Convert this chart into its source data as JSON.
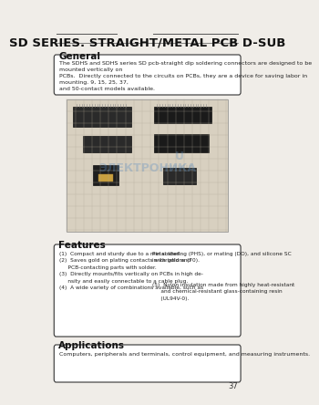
{
  "title": "SD SERIES. STRAIGHT/METAL PCB D-SUB",
  "title_fontsize": 9.5,
  "bg_color": "#f0ede8",
  "page_bg": "#f0ede8",
  "general_heading": "General",
  "general_text": "The SDHS and SDHS series SD pcb-straight dip soldering connectors are designed to be mounted vertically on\nPCBs.  Directly connected to the circuits on PCBs, they are a device for saving labor in mounting. 9, 15, 25, 37,\nand 50-contact models available.",
  "features_heading": "Features",
  "features_left": [
    "(1)  Compact and sturdy due to a metal shell.",
    "(2)  Saves gold on plating contacts with gold and\n     PCB-contacting parts with solder.",
    "(3)  Directly mounts/fits vertically on PCBs in high de-\n     nsity and easily connectable to a cable plug.",
    "(4)  A wide variety of combinations available, such as"
  ],
  "features_right_top": "Pin soldering (PHS), or mating (DO), and silicone SC\nin variations (70).",
  "features_right_bottom": "(5)  Nylon insulation made from highly heat-resistant\n     and chemical-resistant glass-containing resin\n     (UL94V-0).",
  "applications_heading": "Applications",
  "applications_text": "Computers, peripherals and terminals, control equipment, and measuring instruments.",
  "page_number": "37",
  "watermark_text": "ЭЛЕКТРОНИКА",
  "top_line_color": "#555555",
  "box_bg": "#ffffff",
  "box_border": "#333333",
  "heading_fontsize": 7.5,
  "body_fontsize": 5.0,
  "small_fontsize": 4.5
}
